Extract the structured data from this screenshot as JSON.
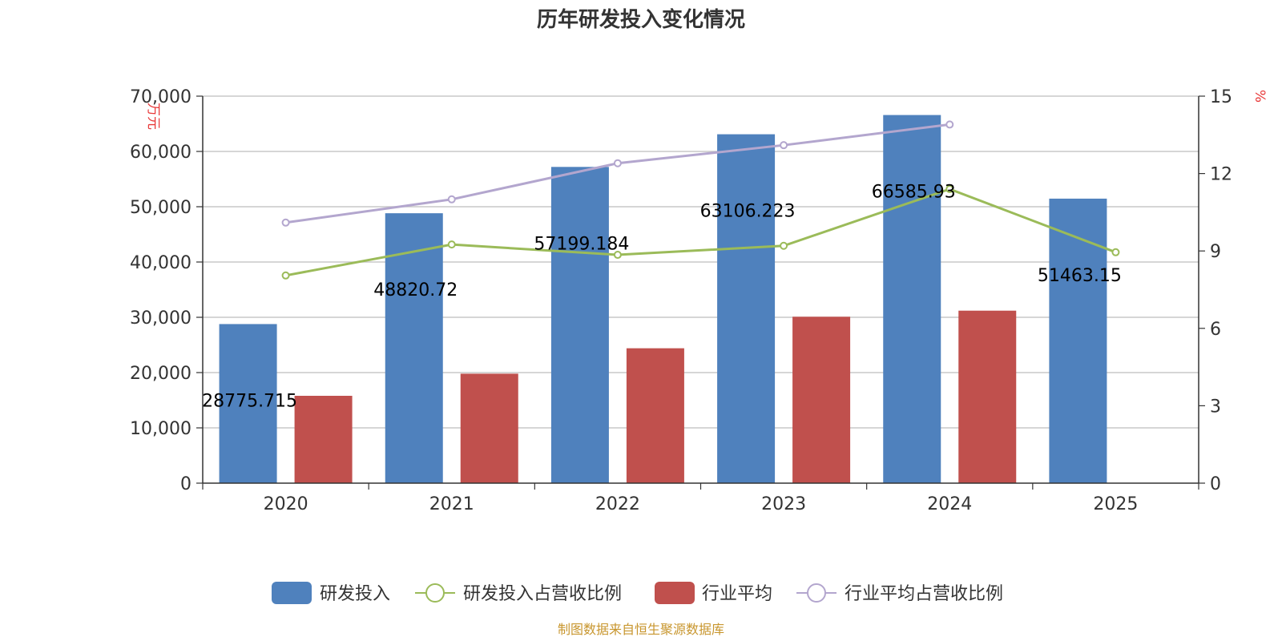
{
  "chart_data": {
    "type": "bar",
    "title": "历年研发投入变化情况",
    "categories": [
      "2020",
      "2021",
      "2022",
      "2023",
      "2024",
      "2025"
    ],
    "y_left": {
      "unit": "万元",
      "ticks": [
        "0",
        "10,000",
        "20,000",
        "30,000",
        "40,000",
        "50,000",
        "60,000",
        "70,000"
      ],
      "ylim": [
        0,
        70000
      ]
    },
    "y_right": {
      "unit": "%",
      "ticks": [
        "0",
        "3",
        "6",
        "9",
        "12",
        "15"
      ],
      "ylim": [
        0,
        15
      ]
    },
    "series": [
      {
        "name": "研发投入",
        "type": "bar",
        "axis": "left",
        "color": "#4f81bd",
        "values": [
          28775.715,
          48820.72,
          57199.184,
          63106.223,
          66585.93,
          51463.15
        ],
        "labels": [
          "28775.715",
          "48820.72",
          "57199.184",
          "63106.223",
          "66585.93",
          "51463.15"
        ]
      },
      {
        "name": "研发投入占营收比例",
        "type": "line",
        "axis": "right",
        "color": "#9bbb59",
        "values": [
          8.05,
          9.25,
          8.85,
          9.2,
          11.4,
          8.95
        ]
      },
      {
        "name": "行业平均",
        "type": "bar",
        "axis": "left",
        "color": "#c0504d",
        "values": [
          15800,
          19800,
          24400,
          30100,
          31200,
          null
        ]
      },
      {
        "name": "行业平均占营收比例",
        "type": "line",
        "axis": "right",
        "color": "#b3a6ce",
        "values": [
          10.1,
          11.0,
          12.4,
          13.1,
          13.9,
          null
        ]
      }
    ],
    "legend": [
      "研发投入",
      "研发投入占营收比例",
      "行业平均",
      "行业平均占营收比例"
    ],
    "source": "制图数据来自恒生聚源数据库"
  }
}
